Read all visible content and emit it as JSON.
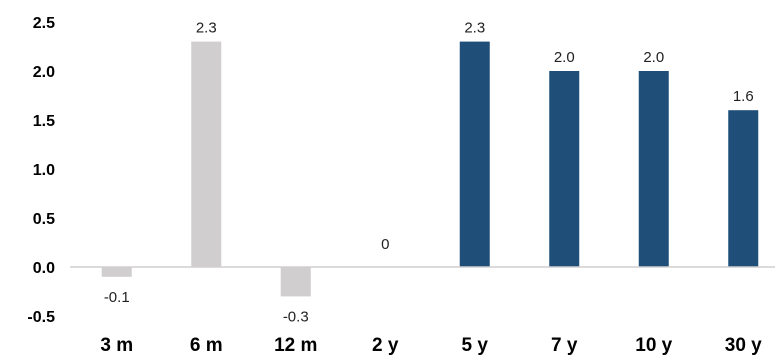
{
  "chart_data": {
    "type": "bar",
    "categories": [
      "3 m",
      "6 m",
      "12 m",
      "2 y",
      "5 y",
      "7 y",
      "10 y",
      "30 y"
    ],
    "values": [
      -0.1,
      2.3,
      -0.3,
      0,
      2.3,
      2.0,
      2.0,
      1.6
    ],
    "data_labels": [
      "-0.1",
      "2.3",
      "-0.3",
      "0",
      "2.3",
      "2.0",
      "2.0",
      "1.6"
    ],
    "colors": [
      "#d0cece",
      "#d0cece",
      "#d0cece",
      "#d0cece",
      "#1f4e79",
      "#1f4e79",
      "#1f4e79",
      "#1f4e79"
    ],
    "yticks": [
      "2.5",
      "2.0",
      "1.5",
      "1.0",
      "0.5",
      "0.0",
      "-0.5"
    ],
    "ytick_values": [
      2.5,
      2.0,
      1.5,
      1.0,
      0.5,
      0.0,
      -0.5
    ],
    "ylim": [
      -0.5,
      2.5
    ],
    "grid": false,
    "legend": "none",
    "title": "",
    "xlabel": "",
    "ylabel": "",
    "zero_line_color": "#d0cece"
  }
}
